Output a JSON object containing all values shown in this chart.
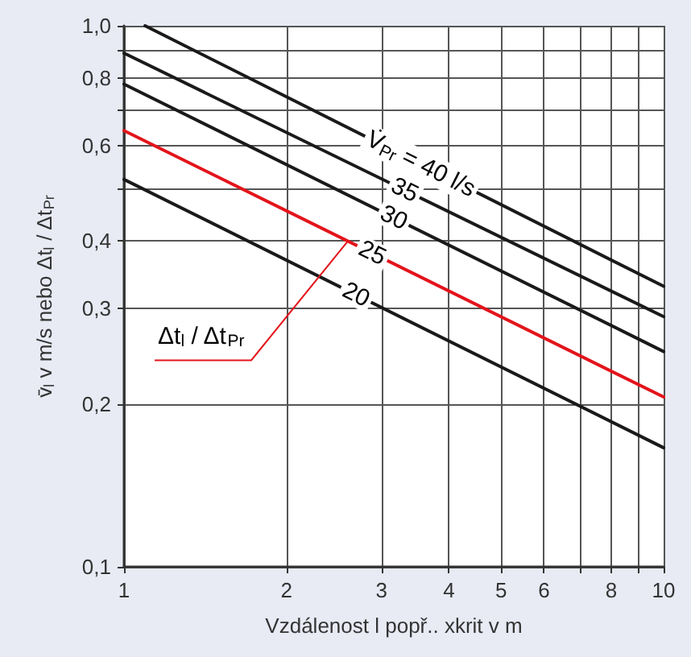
{
  "chart_data": {
    "type": "line",
    "xlabel": "Vzdálenost l popř.. xkrit v m",
    "ylabel": "v̄$_{l}$ v m/s nebo Δt$_{l}$ / Δt$_{Pr}$",
    "log": "xy",
    "grid": true,
    "marker": "none",
    "line_style": "solid",
    "xlim": [
      1,
      10
    ],
    "xticks": [
      1,
      2,
      3,
      4,
      5,
      6,
      {
        "value": 7,
        "label": null
      },
      8,
      {
        "value": 9,
        "label": null
      },
      10
    ],
    "ylim": [
      0.1,
      1.0
    ],
    "yticks": [
      {
        "value": 0.1,
        "label": "0,1"
      },
      {
        "value": 0.2,
        "label": "0,2"
      },
      {
        "value": 0.3,
        "label": "0,3"
      },
      {
        "value": 0.4,
        "label": "0,4"
      },
      {
        "value": 0.5,
        "label": null
      },
      {
        "value": 0.6,
        "label": "0,6"
      },
      {
        "value": 0.7,
        "label": null
      },
      {
        "value": 0.8,
        "label": "0,8"
      },
      {
        "value": 0.9,
        "label": null
      },
      {
        "value": 1.0,
        "label": "1,0"
      }
    ],
    "series": [
      {
        "name": "V̇$_{Pr}$ = 40 l/s",
        "color": "#1a1a1a",
        "x": [
          1.094,
          10
        ],
        "values": [
          1.0,
          0.33
        ]
      },
      {
        "name": "35",
        "color": "#1a1a1a",
        "x": [
          1,
          10
        ],
        "values": [
          0.89,
          0.29
        ]
      },
      {
        "name": "30",
        "color": "#1a1a1a",
        "x": [
          1,
          10
        ],
        "values": [
          0.78,
          0.25
        ]
      },
      {
        "name": "25",
        "color": "#e3141b",
        "x": [
          1,
          10
        ],
        "values": [
          0.64,
          0.206
        ]
      },
      {
        "name": "20",
        "color": "#1a1a1a",
        "x": [
          1,
          10
        ],
        "values": [
          0.52,
          0.166
        ]
      }
    ],
    "annotations": [
      {
        "text": "Δt$_{l}$ / Δt$_{Pr}$",
        "x": 2.6,
        "y": 0.4
      }
    ]
  }
}
